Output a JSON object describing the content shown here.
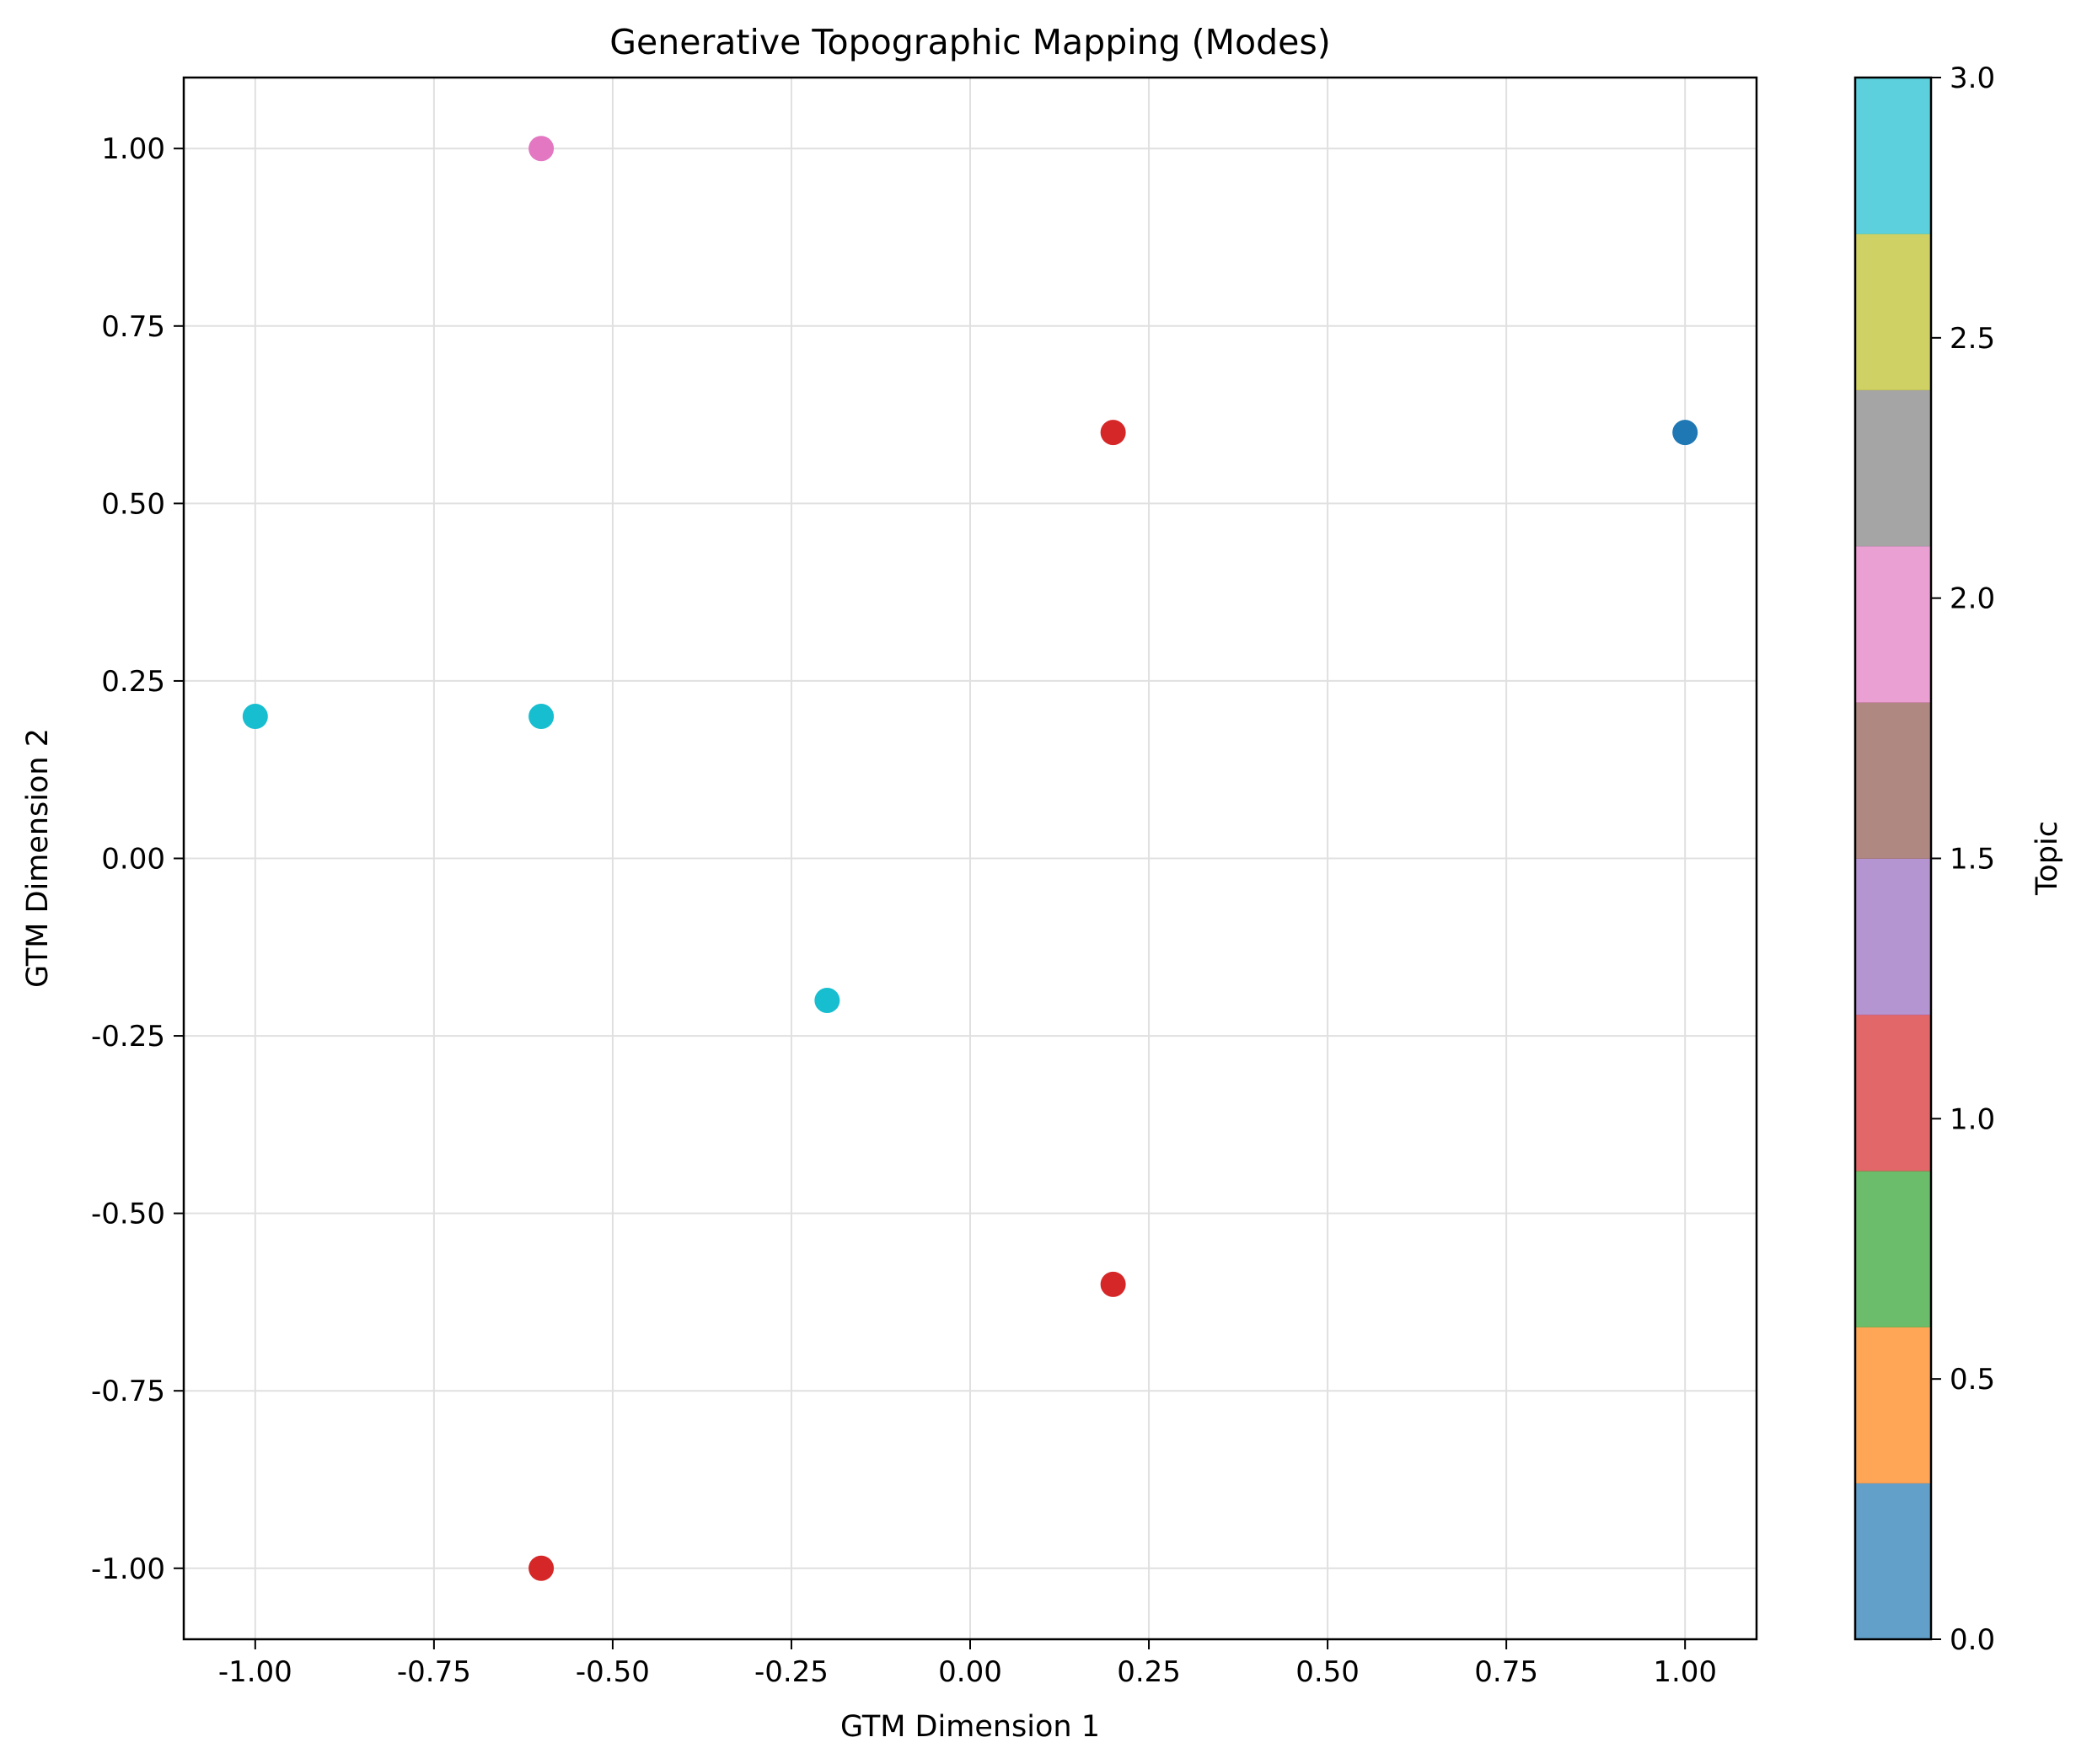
{
  "chart_data": {
    "type": "scatter",
    "title": "Generative Topographic Mapping (Modes)",
    "xlabel": "GTM Dimension 1",
    "ylabel": "GTM Dimension 2",
    "xlim": [
      -1.1,
      1.1
    ],
    "ylim": [
      -1.1,
      1.1
    ],
    "xticks": [
      "-1.00",
      "-0.75",
      "-0.50",
      "-0.25",
      "0.00",
      "0.25",
      "0.50",
      "0.75",
      "1.00"
    ],
    "xtick_values": [
      -1.0,
      -0.75,
      -0.5,
      -0.25,
      0.0,
      0.25,
      0.5,
      0.75,
      1.0
    ],
    "yticks": [
      "1.00",
      "0.75",
      "0.50",
      "0.25",
      "0.00",
      "-0.25",
      "-0.50",
      "-0.75",
      "-1.00"
    ],
    "ytick_values": [
      1.0,
      0.75,
      0.5,
      0.25,
      0.0,
      -0.25,
      -0.5,
      -0.75,
      -1.0
    ],
    "grid": true,
    "points": [
      {
        "x": -0.6,
        "y": 1.0,
        "topic": 2
      },
      {
        "x": 0.2,
        "y": 0.6,
        "topic": 1
      },
      {
        "x": 1.0,
        "y": 0.6,
        "topic": 0
      },
      {
        "x": -1.0,
        "y": 0.2,
        "topic": 3
      },
      {
        "x": -0.6,
        "y": 0.2,
        "topic": 3
      },
      {
        "x": -0.2,
        "y": -0.2,
        "topic": 3
      },
      {
        "x": 0.2,
        "y": -0.6,
        "topic": 1
      },
      {
        "x": -0.6,
        "y": -1.0,
        "topic": 1
      }
    ],
    "point_colors": {
      "0": "#1f77b4",
      "1": "#d62728",
      "2": "#e377c2",
      "3": "#17becf"
    },
    "colorbar": {
      "label": "Topic",
      "range": [
        0,
        3
      ],
      "ticks": [
        "0.0",
        "0.5",
        "1.0",
        "1.5",
        "2.0",
        "2.5",
        "3.0"
      ],
      "tick_values": [
        0,
        0.5,
        1.0,
        1.5,
        2.0,
        2.5,
        3.0
      ],
      "colors": [
        "#1f77b4",
        "#ff7f0e",
        "#2ca02c",
        "#d62728",
        "#9467bd",
        "#8c564b",
        "#e377c2",
        "#7f7f7f",
        "#bcbd22",
        "#17becf"
      ],
      "alpha": 0.7
    }
  }
}
